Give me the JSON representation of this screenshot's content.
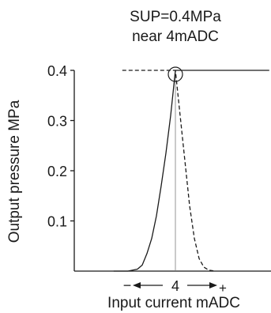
{
  "chart_data": {
    "type": "line",
    "title_lines": [
      "SUP=0.4MPa",
      "near 4mADC"
    ],
    "xlabel": "Input current mADC",
    "ylabel": "Output pressure MPa",
    "ylim": [
      0,
      0.4
    ],
    "yticks": [
      {
        "value": 0.1,
        "label": "0.1"
      },
      {
        "value": 0.2,
        "label": "0.2"
      },
      {
        "value": 0.3,
        "label": "0.3"
      },
      {
        "value": 0.4,
        "label": "0.4"
      }
    ],
    "x_center_label": "4",
    "x_minus_label": "−",
    "x_plus_label": "+",
    "grid": false,
    "series": [
      {
        "style": "solid",
        "points": [
          [
            -3.26,
            0
          ],
          [
            -2.5,
            0
          ],
          [
            -2.0,
            0.004
          ],
          [
            -1.75,
            0.012
          ],
          [
            -1.5,
            0.035
          ],
          [
            -1.25,
            0.065
          ],
          [
            -1.0,
            0.11
          ],
          [
            -0.75,
            0.17
          ],
          [
            -0.5,
            0.235
          ],
          [
            -0.25,
            0.31
          ],
          [
            0,
            0.4
          ],
          [
            4.95,
            0.4
          ]
        ]
      },
      {
        "style": "dashed",
        "points": [
          [
            -2.8,
            0.4
          ],
          [
            0,
            0.4
          ],
          [
            0.25,
            0.31
          ],
          [
            0.5,
            0.22
          ],
          [
            0.75,
            0.13
          ],
          [
            1.0,
            0.065
          ],
          [
            1.25,
            0.025
          ],
          [
            1.5,
            0.008
          ],
          [
            1.75,
            0.002
          ],
          [
            2.1,
            0
          ]
        ]
      }
    ],
    "marker_circle": {
      "x": 0,
      "y": 0.4
    }
  }
}
